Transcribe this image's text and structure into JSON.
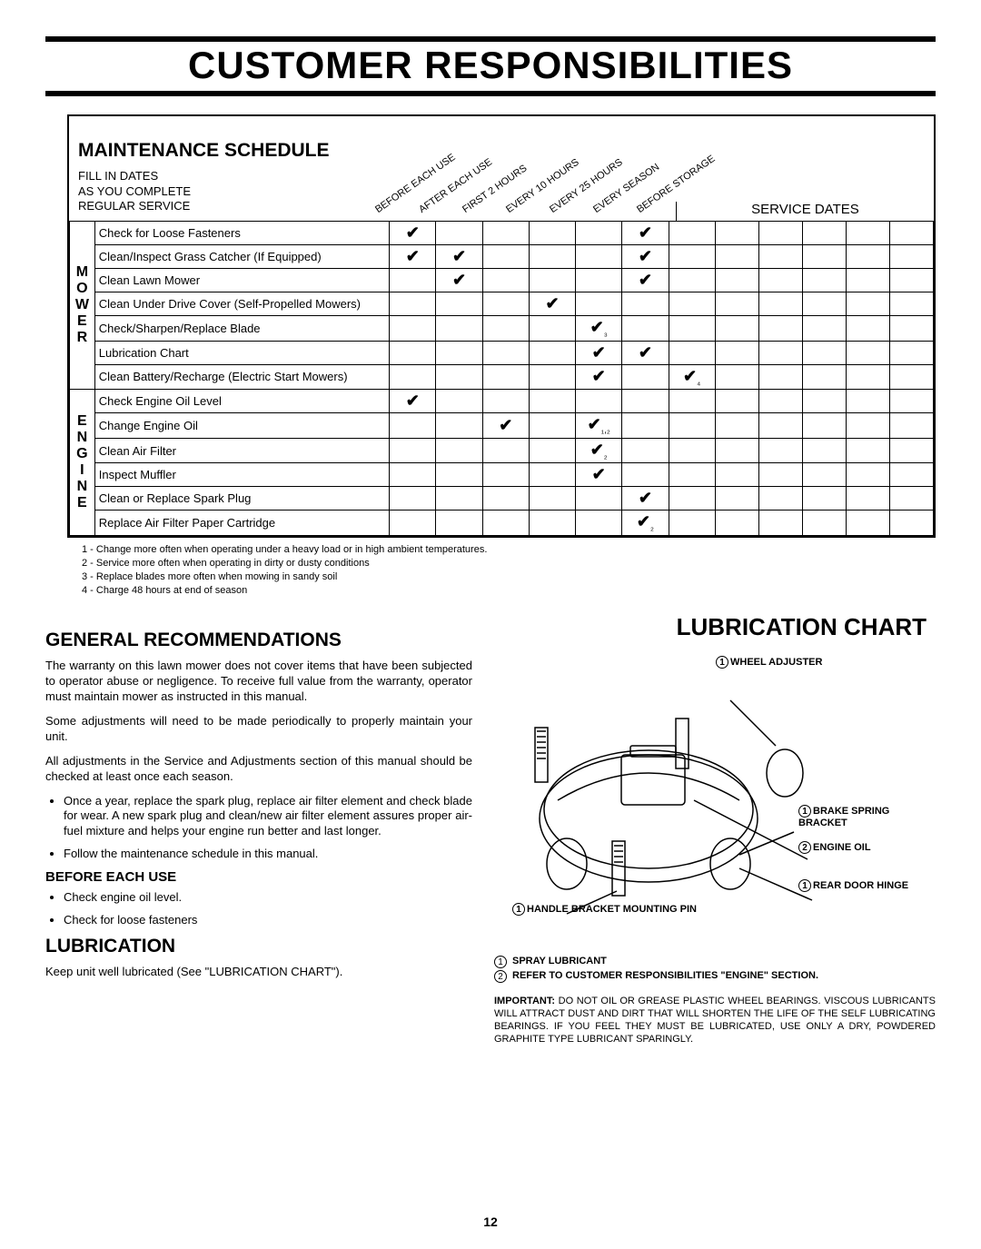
{
  "page_title": "CUSTOMER RESPONSIBILITIES",
  "schedule": {
    "title": "MAINTENANCE SCHEDULE",
    "subtitle": "FILL IN DATES\nAS YOU COMPLETE\nREGULAR SERVICE",
    "service_dates_header": "SERVICE DATES",
    "diag_labels": [
      "BEFORE EACH USE",
      "AFTER EACH USE",
      "FIRST 2 HOURS",
      "EVERY 10 HOURS",
      "EVERY 25 HOURS",
      "EVERY SEASON",
      "BEFORE STORAGE"
    ],
    "service_date_cols": 5,
    "groups": [
      {
        "side_label": "MOWER",
        "rows": [
          {
            "task": "Check for Loose Fasteners",
            "checks": [
              "✔",
              "",
              "",
              "",
              "",
              "✔",
              ""
            ]
          },
          {
            "task": "Clean/Inspect Grass Catcher (If Equipped)",
            "checks": [
              "✔",
              "✔",
              "",
              "",
              "",
              "✔",
              ""
            ]
          },
          {
            "task": "Clean Lawn Mower",
            "checks": [
              "",
              "✔",
              "",
              "",
              "",
              "✔",
              ""
            ]
          },
          {
            "task": "Clean Under Drive Cover (Self-Propelled Mowers)",
            "checks": [
              "",
              "",
              "",
              "✔",
              "",
              "",
              ""
            ]
          },
          {
            "task": "Check/Sharpen/Replace Blade",
            "checks": [
              "",
              "",
              "",
              "",
              "✔₃",
              "",
              ""
            ]
          },
          {
            "task": "Lubrication Chart",
            "checks": [
              "",
              "",
              "",
              "",
              "✔",
              "✔",
              ""
            ]
          },
          {
            "task": "Clean Battery/Recharge (Electric Start Mowers)",
            "checks": [
              "",
              "",
              "",
              "",
              "✔",
              "",
              "✔₄"
            ]
          }
        ]
      },
      {
        "side_label": "ENGINE",
        "rows": [
          {
            "task": "Check Engine Oil Level",
            "checks": [
              "✔",
              "",
              "",
              "",
              "",
              "",
              ""
            ]
          },
          {
            "task": "Change Engine Oil",
            "checks": [
              "",
              "",
              "✔",
              "",
              "✔₁,₂",
              "",
              ""
            ]
          },
          {
            "task": "Clean Air Filter",
            "checks": [
              "",
              "",
              "",
              "",
              "✔₂",
              "",
              ""
            ]
          },
          {
            "task": "Inspect Muffler",
            "checks": [
              "",
              "",
              "",
              "",
              "✔",
              "",
              ""
            ]
          },
          {
            "task": "Clean or Replace Spark Plug",
            "checks": [
              "",
              "",
              "",
              "",
              "",
              "✔",
              ""
            ]
          },
          {
            "task": "Replace Air Filter Paper Cartridge",
            "checks": [
              "",
              "",
              "",
              "",
              "",
              "✔₂",
              ""
            ]
          }
        ]
      }
    ]
  },
  "footnotes": [
    "1 - Change more often when operating under a heavy load or in high ambient temperatures.",
    "2 - Service more often when operating in dirty or dusty conditions",
    "3 - Replace blades more often when mowing in sandy soil",
    "4 - Charge 48 hours at end of season"
  ],
  "general": {
    "heading": "GENERAL RECOMMENDATIONS",
    "p1": "The warranty on this lawn mower does not cover items that have been subjected to operator abuse or negligence. To receive full value from the warranty, operator must maintain mower as instructed in this manual.",
    "p2": "Some adjustments will need to be made periodically to properly maintain your unit.",
    "p3": "All adjustments in the Service and Adjustments section of this manual should be checked at least once each season.",
    "bullets": [
      "Once a year, replace the spark plug, replace air filter element and check blade for wear. A new spark plug and clean/new air filter element assures proper air-fuel mixture and helps your engine run better and last longer.",
      "Follow the maintenance schedule in this manual."
    ],
    "before_heading": "BEFORE EACH USE",
    "before_bullets": [
      "Check engine oil level.",
      "Check for loose fasteners"
    ],
    "lub_heading": "LUBRICATION",
    "lub_text": "Keep unit well lubricated (See \"LUBRICATION CHART\")."
  },
  "lubchart": {
    "title": "LUBRICATION CHART",
    "labels": {
      "wheel": "WHEEL ADJUSTER",
      "brake": "BRAKE SPRING BRACKET",
      "engine": "ENGINE OIL",
      "rear": "REAR DOOR HINGE",
      "handle": "HANDLE BRACKET MOUNTING PIN"
    },
    "legend": [
      {
        "n": "1",
        "text": "SPRAY LUBRICANT"
      },
      {
        "n": "2",
        "text": "REFER TO CUSTOMER RESPONSIBILITIES \"ENGINE\" SECTION."
      }
    ],
    "important": "IMPORTANT: DO NOT OIL OR GREASE PLASTIC WHEEL BEARINGS. VISCOUS LUBRICANTS WILL ATTRACT DUST AND DIRT THAT WILL SHORTEN THE LIFE OF THE SELF LUBRICATING BEARINGS. IF YOU FEEL THEY MUST BE LUBRICATED, USE ONLY A DRY, POWDERED GRAPHITE TYPE LUBRICANT SPARINGLY.",
    "important_label": "IMPORTANT:"
  },
  "page_number": "12"
}
